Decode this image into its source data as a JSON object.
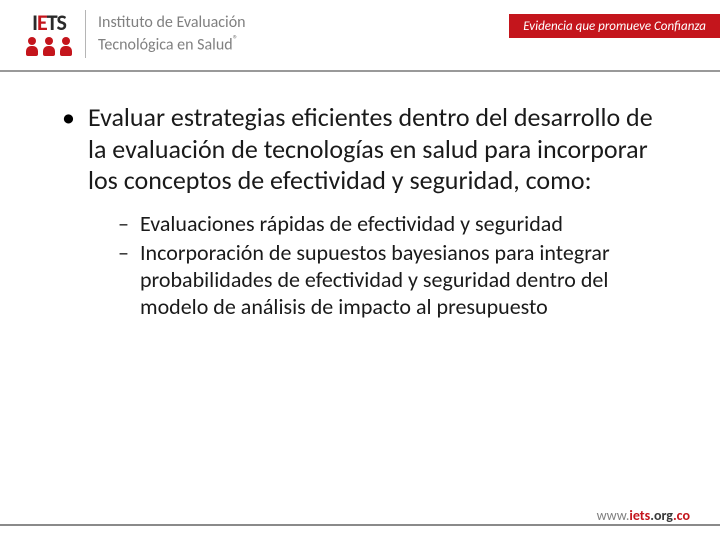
{
  "header": {
    "logo_acronym_pre": "I",
    "logo_acronym_red": "E",
    "logo_acronym_post": "TS",
    "institute_line1": "Instituto de Evaluación",
    "institute_line2": "Tecnológica en Salud",
    "registered": "®",
    "tagline": "Evidencia que promueve Confianza",
    "brand_color": "#c4151c",
    "gray_text": "#808080"
  },
  "content": {
    "main_text": "Evaluar estrategias eficientes dentro del desarrollo de la evaluación de tecnologías en salud para incorporar los conceptos de efectividad y seguridad, como:",
    "sub_items": [
      "Evaluaciones rápidas de efectividad y seguridad",
      "Incorporación de supuestos bayesianos para integrar probabilidades de efectividad y seguridad dentro del modelo de análisis de impacto al presupuesto"
    ],
    "main_fontsize": 26,
    "sub_fontsize": 22,
    "text_color": "#1a1a1a"
  },
  "footer": {
    "url_prefix": "www.",
    "url_mid": "iets",
    "url_org": ".org",
    "url_suffix": ".co",
    "line_color": "#8a8a8a"
  }
}
